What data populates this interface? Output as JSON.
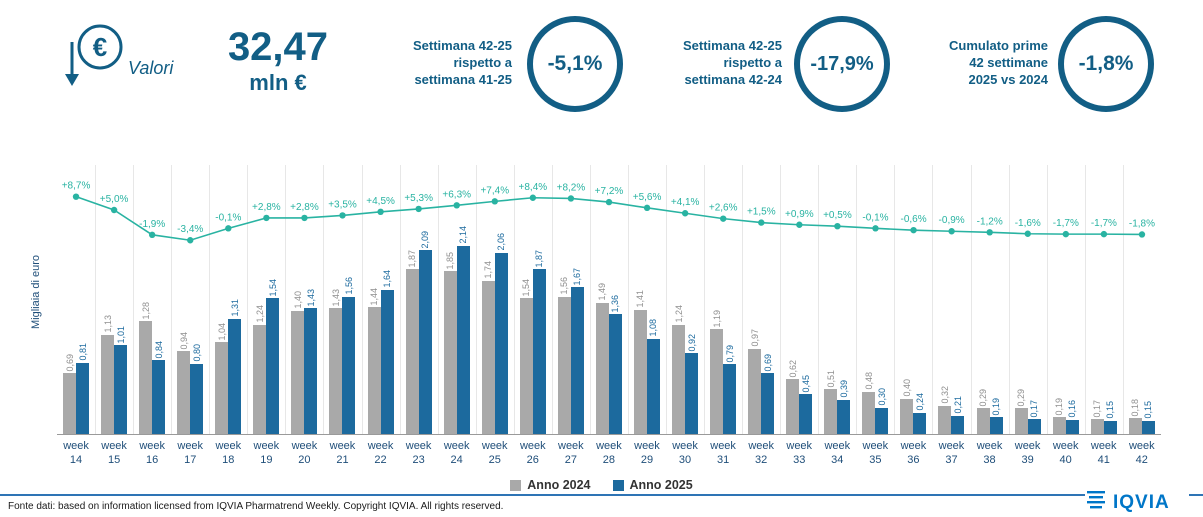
{
  "header": {
    "valori_label": "Valori",
    "total_value": "32,47",
    "total_unit": "mln €",
    "kpis": [
      {
        "label": "Settimana 42-25\nrispetto a\nsettimana 41-25",
        "value": "-5,1%"
      },
      {
        "label": "Settimana 42-25\nrispetto a\nsettimana 42-24",
        "value": "-17,9%"
      },
      {
        "label": "Cumulato prime\n42 settimane\n2025 vs 2024",
        "value": "-1,8%"
      }
    ]
  },
  "chart_data": {
    "type": "bar",
    "title": "",
    "ylabel": "Migliaia di euro",
    "ylim": [
      0,
      2.5
    ],
    "week_label": "week",
    "categories": [
      "14",
      "15",
      "16",
      "17",
      "18",
      "19",
      "20",
      "21",
      "22",
      "23",
      "24",
      "25",
      "26",
      "27",
      "28",
      "29",
      "30",
      "31",
      "32",
      "33",
      "34",
      "35",
      "36",
      "37",
      "38",
      "39",
      "40",
      "41",
      "42"
    ],
    "series": [
      {
        "name": "Anno 2024",
        "color": "#a9a9a9",
        "label_color": "#8f8f8f",
        "values": [
          0.69,
          1.13,
          1.28,
          0.94,
          1.04,
          1.24,
          1.4,
          1.43,
          1.44,
          1.87,
          1.85,
          1.74,
          1.54,
          1.56,
          1.49,
          1.41,
          1.24,
          1.19,
          0.97,
          0.62,
          0.51,
          0.48,
          0.4,
          0.32,
          0.29,
          0.29,
          0.19,
          0.17,
          0.18
        ],
        "labels": [
          "0,69",
          "1,13",
          "1,28",
          "0,94",
          "1,04",
          "1,24",
          "1,40",
          "1,43",
          "1,44",
          "1,87",
          "1,85",
          "1,74",
          "1,54",
          "1,56",
          "1,49",
          "1,41",
          "1,24",
          "1,19",
          "0,97",
          "0,62",
          "0,51",
          "0,48",
          "0,40",
          "0,32",
          "0,29",
          "0,29",
          "0,19",
          "0,17",
          "0,18"
        ]
      },
      {
        "name": "Anno 2025",
        "color": "#1c6a9e",
        "label_color": "#1c6a9e",
        "values": [
          0.81,
          1.01,
          0.84,
          0.8,
          1.31,
          1.54,
          1.43,
          1.56,
          1.64,
          2.09,
          2.14,
          2.06,
          1.87,
          1.67,
          1.36,
          1.08,
          0.92,
          0.79,
          0.69,
          0.45,
          0.39,
          0.3,
          0.24,
          0.21,
          0.19,
          0.17,
          0.16,
          0.15,
          0.15
        ],
        "labels": [
          "0,81",
          "1,01",
          "0,84",
          "0,80",
          "1,31",
          "1,54",
          "1,43",
          "1,56",
          "1,64",
          "2,09",
          "2,14",
          "2,06",
          "1,87",
          "1,67",
          "1,36",
          "1,08",
          "0,92",
          "0,79",
          "0,69",
          "0,45",
          "0,39",
          "0,30",
          "0,24",
          "0,21",
          "0,19",
          "0,17",
          "0,16",
          "0,15",
          "0,15"
        ]
      }
    ],
    "line_series": {
      "name": "Variazione cumulata %",
      "color": "#29b3a2",
      "values": [
        8.7,
        5.0,
        -1.9,
        -3.4,
        -0.1,
        2.8,
        2.8,
        3.5,
        4.5,
        5.3,
        6.3,
        7.4,
        8.4,
        8.2,
        7.2,
        5.6,
        4.1,
        2.6,
        1.5,
        0.9,
        0.5,
        -0.1,
        -0.6,
        -0.9,
        -1.2,
        -1.6,
        -1.7,
        -1.7,
        -1.8
      ],
      "labels": [
        "+8,7%",
        "+5,0%",
        "-1,9%",
        "-3,4%",
        "-0,1%",
        "+2,8%",
        "+2,8%",
        "+3,5%",
        "+4,5%",
        "+5,3%",
        "+6,3%",
        "+7,4%",
        "+8,4%",
        "+8,2%",
        "+7,2%",
        "+5,6%",
        "+4,1%",
        "+2,6%",
        "+1,5%",
        "+0,9%",
        "+0,5%",
        "-0,1%",
        "-0,6%",
        "-0,9%",
        "-1,2%",
        "-1,6%",
        "-1,7%",
        "-1,7%",
        "-1,8%"
      ]
    },
    "legend": [
      "Anno 2024",
      "Anno 2025"
    ],
    "grid": "vertical-only",
    "legend_position": "bottom-center"
  },
  "colors": {
    "brand_blue": "#125e85",
    "bar_2024": "#a9a9a9",
    "bar_2025": "#1c6a9e",
    "trend_teal": "#29b3a2",
    "footer_rule": "#2e74b5",
    "logo_blue": "#0076c8"
  },
  "footer": {
    "source": "Fonte dati: based on information licensed from IQVIA Pharmatrend Weekly. Copyright IQVIA. All rights reserved.",
    "logo_text": "IQVIA"
  }
}
